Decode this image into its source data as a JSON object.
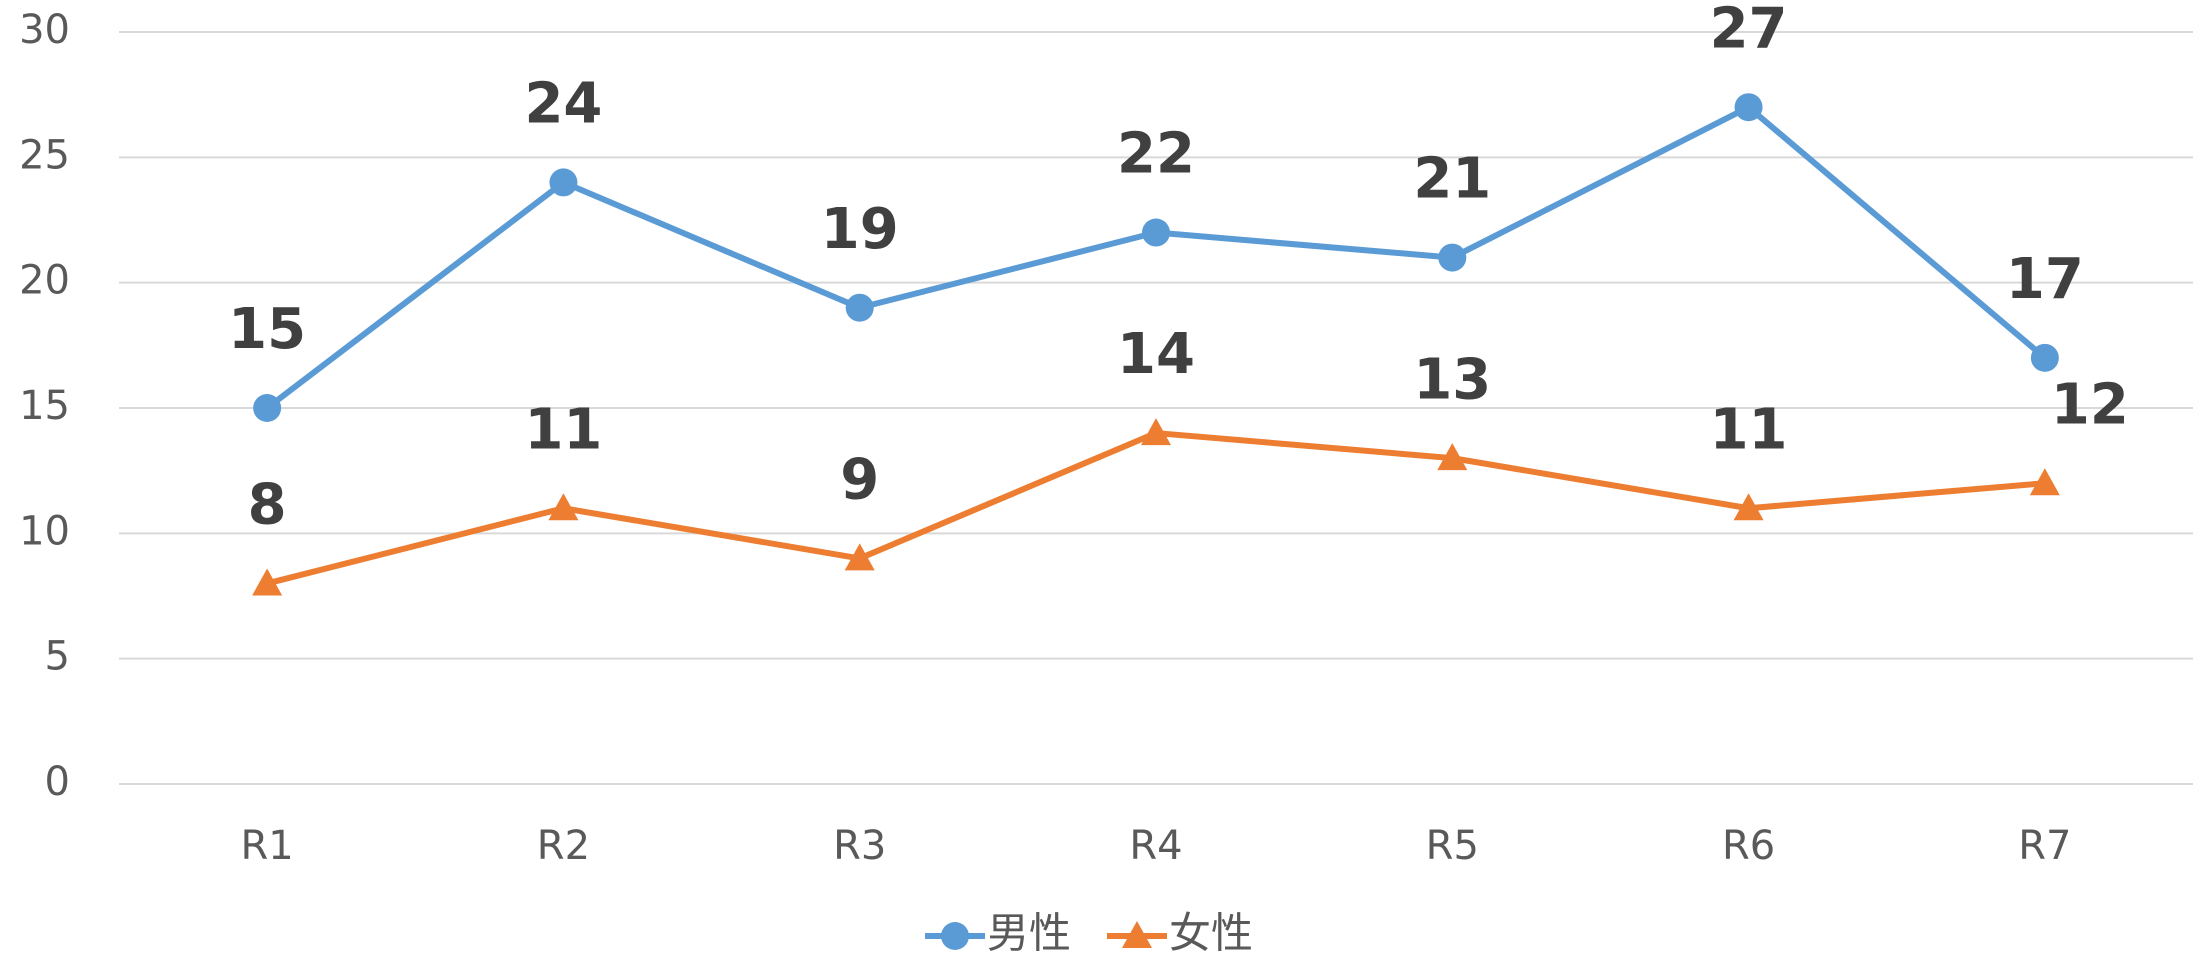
{
  "chart_data": {
    "type": "line",
    "categories": [
      "R1",
      "R2",
      "R3",
      "R4",
      "R5",
      "R6",
      "R7"
    ],
    "series": [
      {
        "name": "男性",
        "color": "#5b9bd5",
        "marker": "circle",
        "values": [
          15,
          24,
          19,
          22,
          21,
          27,
          17
        ]
      },
      {
        "name": "女性",
        "color": "#ed7d31",
        "marker": "triangle",
        "values": [
          8,
          11,
          9,
          14,
          13,
          11,
          12
        ]
      }
    ],
    "ylim": [
      0,
      30
    ],
    "yticks": [
      0,
      5,
      10,
      15,
      20,
      25,
      30
    ],
    "grid": true,
    "legend": "bottom"
  }
}
